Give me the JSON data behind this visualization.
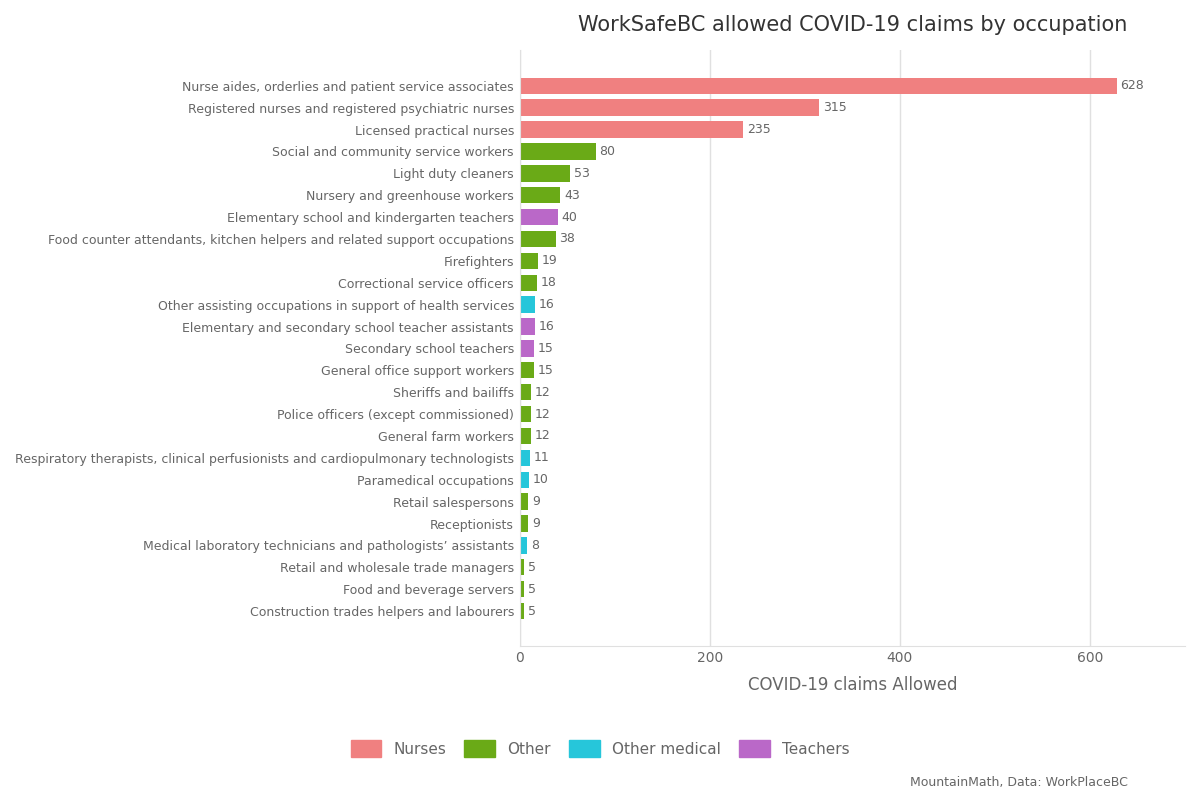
{
  "title": "WorkSafeBC allowed COVID-19 claims by occupation",
  "xlabel": "COVID-19 claims Allowed",
  "categories": [
    "Construction trades helpers and labourers",
    "Food and beverage servers",
    "Retail and wholesale trade managers",
    "Medical laboratory technicians and pathologists’ assistants",
    "Receptionists",
    "Retail salespersons",
    "Paramedical occupations",
    "Respiratory therapists, clinical perfusionists and cardiopulmonary technologists",
    "General farm workers",
    "Police officers (except commissioned)",
    "Sheriffs and bailiffs",
    "General office support workers",
    "Secondary school teachers",
    "Elementary and secondary school teacher assistants",
    "Other assisting occupations in support of health services",
    "Correctional service officers",
    "Firefighters",
    "Food counter attendants, kitchen helpers and related support occupations",
    "Elementary school and kindergarten teachers",
    "Nursery and greenhouse workers",
    "Light duty cleaners",
    "Social and community service workers",
    "Licensed practical nurses",
    "Registered nurses and registered psychiatric nurses",
    "Nurse aides, orderlies and patient service associates"
  ],
  "values": [
    5,
    5,
    5,
    8,
    9,
    9,
    10,
    11,
    12,
    12,
    12,
    15,
    15,
    16,
    16,
    18,
    19,
    38,
    40,
    43,
    53,
    80,
    235,
    315,
    628
  ],
  "colors": [
    "#6aaa17",
    "#6aaa17",
    "#6aaa17",
    "#26c6da",
    "#6aaa17",
    "#6aaa17",
    "#26c6da",
    "#26c6da",
    "#6aaa17",
    "#6aaa17",
    "#6aaa17",
    "#6aaa17",
    "#ba68c8",
    "#ba68c8",
    "#26c6da",
    "#6aaa17",
    "#6aaa17",
    "#6aaa17",
    "#ba68c8",
    "#6aaa17",
    "#6aaa17",
    "#6aaa17",
    "#f08080",
    "#f08080",
    "#f08080"
  ],
  "legend_labels": [
    "Nurses",
    "Other",
    "Other medical",
    "Teachers"
  ],
  "legend_colors": [
    "#f08080",
    "#6aaa17",
    "#26c6da",
    "#ba68c8"
  ],
  "fig_bg": "#ffffff",
  "plot_bg": "#ffffff",
  "grid_color": "#e0e0e0",
  "text_color": "#666666",
  "title_color": "#333333",
  "attribution": "MountainMath, Data: WorkPlaceBC",
  "xlim": [
    0,
    700
  ],
  "xticks": [
    0,
    200,
    400,
    600
  ]
}
